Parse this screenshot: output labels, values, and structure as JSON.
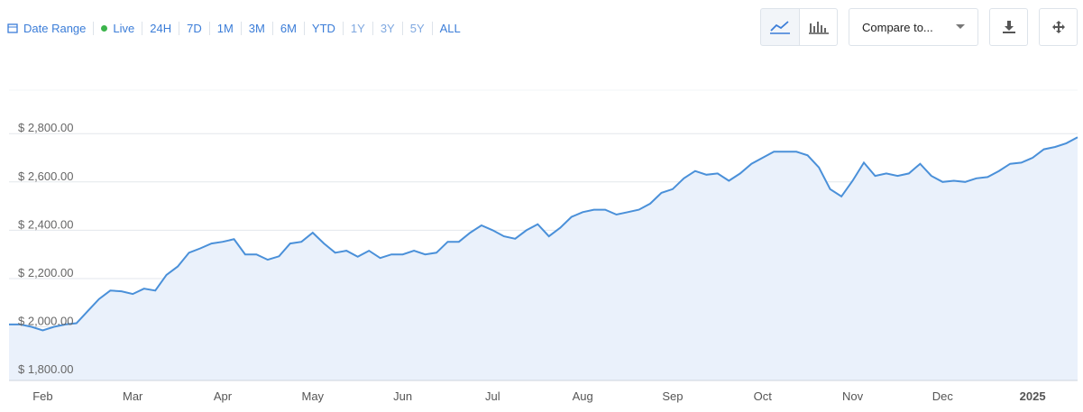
{
  "toolbar": {
    "date_range": "Date Range",
    "live": "Live",
    "ranges": [
      "24H",
      "7D",
      "1M",
      "3M",
      "6M",
      "YTD",
      "1Y",
      "3Y",
      "5Y",
      "ALL"
    ],
    "compare": "Compare to..."
  },
  "chart_data": {
    "type": "area",
    "categories": [
      null,
      null,
      null,
      "Feb",
      null,
      null,
      null,
      null,
      null,
      null,
      null,
      "Mar",
      null,
      null,
      null,
      null,
      null,
      null,
      null,
      "Apr",
      null,
      null,
      null,
      null,
      null,
      null,
      null,
      "May",
      null,
      null,
      null,
      null,
      null,
      null,
      null,
      "Jun",
      null,
      null,
      null,
      null,
      null,
      null,
      null,
      "Jul",
      null,
      null,
      null,
      null,
      null,
      null,
      null,
      "Aug",
      null,
      null,
      null,
      null,
      null,
      null,
      null,
      "Sep",
      null,
      null,
      null,
      null,
      null,
      null,
      null,
      "Oct",
      null,
      null,
      null,
      null,
      null,
      null,
      null,
      "Nov",
      null,
      null,
      null,
      null,
      null,
      null,
      null,
      "Dec",
      null,
      null,
      null,
      null,
      null,
      null,
      null,
      "2025",
      null,
      null,
      null,
      null
    ],
    "values": [
      2010,
      2010,
      2000,
      1985,
      2000,
      2010,
      2015,
      2065,
      2115,
      2150,
      2147,
      2136,
      2158,
      2150,
      2215,
      2250,
      2307,
      2325,
      2345,
      2352,
      2363,
      2300,
      2300,
      2278,
      2292,
      2345,
      2352,
      2390,
      2345,
      2307,
      2315,
      2290,
      2315,
      2285,
      2300,
      2300,
      2315,
      2300,
      2307,
      2352,
      2352,
      2390,
      2420,
      2400,
      2375,
      2365,
      2400,
      2425,
      2375,
      2410,
      2455,
      2475,
      2485,
      2485,
      2465,
      2475,
      2485,
      2510,
      2555,
      2570,
      2615,
      2645,
      2630,
      2635,
      2605,
      2635,
      2675,
      2700,
      2725,
      2725,
      2725,
      2710,
      2660,
      2570,
      2540,
      2605,
      2680,
      2625,
      2635,
      2625,
      2635,
      2675,
      2625,
      2600,
      2605,
      2600,
      2615,
      2620,
      2645,
      2675,
      2680,
      2700,
      2735,
      2745,
      2760,
      2785
    ],
    "color": "#4a90d9",
    "ylim": [
      1778,
      2980
    ],
    "yticks": [
      {
        "value": 1800,
        "label": "$ 1,800.00"
      },
      {
        "value": 2000,
        "label": "$ 2,000.00"
      },
      {
        "value": 2200,
        "label": "$ 2,200.00"
      },
      {
        "value": 2400,
        "label": "$ 2,400.00"
      },
      {
        "value": 2600,
        "label": "$ 2,600.00"
      },
      {
        "value": 2800,
        "label": "$ 2,800.00"
      }
    ],
    "grid": true
  }
}
